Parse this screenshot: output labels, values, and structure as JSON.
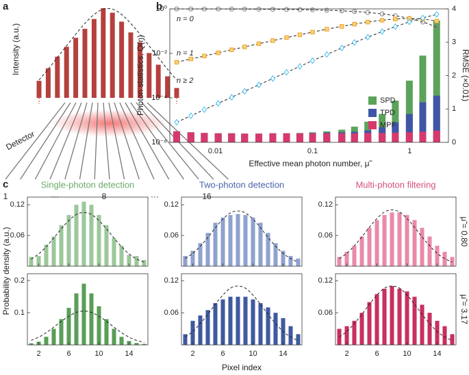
{
  "chart_data": [
    {
      "type": "bar",
      "panel": "a",
      "ylabel": "Intensity (a.u.)",
      "color": "#b5403d",
      "values": [
        0.19,
        0.33,
        0.46,
        0.57,
        0.67,
        0.77,
        0.88,
        1.0,
        0.95,
        0.85,
        0.73,
        0.62,
        0.5,
        0.37,
        0.24,
        0.11
      ],
      "fit": [
        0.2,
        0.32,
        0.45,
        0.58,
        0.71,
        0.83,
        0.93,
        0.99,
        0.99,
        0.93,
        0.83,
        0.71,
        0.58,
        0.45,
        0.32,
        0.2
      ],
      "detector_label": "Detector",
      "pixel_labels": [
        "1",
        "···",
        "8",
        "···",
        "16"
      ]
    },
    {
      "type": "combo",
      "panel": "b",
      "xlabel": "Effective mean photon number, μ̃",
      "ylabel": "Photon statistics, Q(n)",
      "y2label": "RMSE (×0.01)",
      "xscale": "log",
      "yscale": "log",
      "legend": "right",
      "x": [
        0.004,
        0.0056,
        0.0077,
        0.0107,
        0.0147,
        0.02,
        0.028,
        0.039,
        0.054,
        0.074,
        0.1,
        0.14,
        0.2,
        0.27,
        0.37,
        0.52,
        0.71,
        0.99,
        1.36,
        1.89
      ],
      "xlim": [
        0.0034,
        2.5
      ],
      "xticks": [
        0.01,
        0.1,
        1
      ],
      "ylim": [
        1e-06,
        1
      ],
      "yticks": [
        {
          "value": 1e-06,
          "label": "10⁻⁶"
        },
        {
          "value": 0.0001,
          "label": "10⁻⁴"
        },
        {
          "value": 0.01,
          "label": "10⁻²"
        },
        {
          "value": 1,
          "label": "10⁰"
        }
      ],
      "y2lim": [
        0,
        4
      ],
      "y2ticks": [
        0,
        1,
        2,
        3,
        4
      ],
      "series": [
        {
          "name": "n = 0",
          "kind": "line",
          "marker": "circle",
          "color": "#888888",
          "values": [
            0.996,
            0.994,
            0.992,
            0.989,
            0.985,
            0.98,
            0.972,
            0.962,
            0.947,
            0.929,
            0.905,
            0.869,
            0.819,
            0.763,
            0.691,
            0.595,
            0.492,
            0.372,
            0.257,
            0.151
          ]
        },
        {
          "name": "n = 1",
          "kind": "line",
          "marker": "square",
          "color": "#f0a830",
          "values": [
            0.004,
            0.0056,
            0.0076,
            0.0106,
            0.0145,
            0.0196,
            0.0272,
            0.0375,
            0.0511,
            0.0687,
            0.0905,
            0.122,
            0.164,
            0.206,
            0.256,
            0.309,
            0.349,
            0.368,
            0.349,
            0.285
          ]
        },
        {
          "name": "n ≥ 2",
          "kind": "line",
          "marker": "diamond",
          "color": "#4fc3ee",
          "values": [
            8e-06,
            1.56e-05,
            2.95e-05,
            5.65e-05,
            0.000106,
            0.000197,
            0.000384,
            0.000741,
            0.00141,
            0.0026,
            0.00468,
            0.0089,
            0.0175,
            0.031,
            0.0533,
            0.0956,
            0.159,
            0.26,
            0.393,
            0.564
          ]
        },
        {
          "name": "SPD",
          "kind": "bar",
          "axis": "y2",
          "color": "#5ba35a",
          "values": [
            0.33,
            0.3,
            0.28,
            0.27,
            0.27,
            0.26,
            0.26,
            0.27,
            0.27,
            0.28,
            0.3,
            0.33,
            0.38,
            0.47,
            0.62,
            0.85,
            1.25,
            1.85,
            2.6,
            3.65
          ]
        },
        {
          "name": "TPD",
          "kind": "bar",
          "axis": "y2",
          "color": "#3f56a7",
          "values": [
            0.33,
            0.3,
            0.28,
            0.27,
            0.27,
            0.26,
            0.26,
            0.27,
            0.27,
            0.27,
            0.28,
            0.29,
            0.3,
            0.32,
            0.36,
            0.45,
            0.6,
            0.85,
            1.2,
            1.4
          ]
        },
        {
          "name": "MPF",
          "kind": "bar",
          "axis": "y2",
          "color": "#d63a6c",
          "values": [
            0.33,
            0.3,
            0.28,
            0.27,
            0.27,
            0.26,
            0.26,
            0.27,
            0.27,
            0.27,
            0.27,
            0.27,
            0.27,
            0.27,
            0.28,
            0.28,
            0.29,
            0.3,
            0.32,
            0.35
          ]
        }
      ]
    },
    {
      "type": "bar",
      "panel": "c",
      "title": "Single-photon detection",
      "title_color": "#6aaa6a",
      "ylabel": "Probability density (a.u.)",
      "color": "#9cc79a",
      "xtick_labels": false,
      "x": [
        1,
        2,
        3,
        4,
        5,
        6,
        7,
        8,
        9,
        10,
        11,
        12,
        13,
        14,
        15,
        16
      ],
      "xlim": [
        0.5,
        16.5
      ],
      "xticks": [
        2,
        6,
        10,
        14
      ],
      "ylim": [
        0,
        0.135
      ],
      "yticks": [
        0.06,
        0.12
      ],
      "values": [
        0.018,
        0.02,
        0.042,
        0.058,
        0.08,
        0.1,
        0.12,
        0.126,
        0.12,
        0.1,
        0.08,
        0.055,
        0.04,
        0.022,
        0.02,
        0.012
      ],
      "fit": [
        0.014,
        0.024,
        0.038,
        0.055,
        0.073,
        0.089,
        0.101,
        0.105,
        0.101,
        0.089,
        0.073,
        0.055,
        0.038,
        0.024,
        0.014,
        0.008
      ]
    },
    {
      "type": "bar",
      "title": "Two-photon detection",
      "title_color": "#4a64ad",
      "color": "#8fa2cf",
      "xtick_labels": false,
      "x": [
        1,
        2,
        3,
        4,
        5,
        6,
        7,
        8,
        9,
        10,
        11,
        12,
        13,
        14,
        15,
        16
      ],
      "xlim": [
        0.5,
        16.5
      ],
      "xticks": [
        2,
        6,
        10,
        14
      ],
      "ylim": [
        0,
        0.135
      ],
      "yticks": [
        0.06,
        0.12
      ],
      "values": [
        0.02,
        0.03,
        0.045,
        0.065,
        0.085,
        0.095,
        0.1,
        0.102,
        0.1,
        0.095,
        0.085,
        0.065,
        0.045,
        0.03,
        0.02,
        0.015
      ],
      "fit": [
        0.015,
        0.025,
        0.039,
        0.056,
        0.075,
        0.092,
        0.104,
        0.108,
        0.104,
        0.092,
        0.075,
        0.056,
        0.039,
        0.025,
        0.015,
        0.008
      ]
    },
    {
      "type": "bar",
      "title": "Multi-photon filtering",
      "title_color": "#d4507a",
      "annotation": "μ̃ = 0.80",
      "color": "#e98aa8",
      "xtick_labels": false,
      "x": [
        1,
        2,
        3,
        4,
        5,
        6,
        7,
        8,
        9,
        10,
        11,
        12,
        13,
        14,
        15,
        16
      ],
      "xlim": [
        0.5,
        16.5
      ],
      "xticks": [
        2,
        6,
        10,
        14
      ],
      "ylim": [
        0,
        0.135
      ],
      "yticks": [
        0.06,
        0.12
      ],
      "values": [
        0.018,
        0.028,
        0.04,
        0.058,
        0.075,
        0.09,
        0.1,
        0.105,
        0.105,
        0.1,
        0.09,
        0.075,
        0.058,
        0.04,
        0.028,
        0.018
      ],
      "fit": [
        0.015,
        0.025,
        0.04,
        0.057,
        0.076,
        0.093,
        0.106,
        0.11,
        0.106,
        0.093,
        0.076,
        0.057,
        0.04,
        0.025,
        0.015,
        0.008
      ]
    },
    {
      "type": "bar",
      "color": "#5a9e58",
      "xtick_labels": true,
      "x": [
        1,
        2,
        3,
        4,
        5,
        6,
        7,
        8,
        9,
        10,
        11,
        12,
        13,
        14,
        15,
        16
      ],
      "xlim": [
        0.5,
        16.5
      ],
      "xticks": [
        2,
        6,
        10,
        14
      ],
      "ylim": [
        0,
        0.221
      ],
      "yticks": [
        0.1,
        0.2
      ],
      "values": [
        0.005,
        0.01,
        0.025,
        0.05,
        0.08,
        0.115,
        0.16,
        0.19,
        0.16,
        0.12,
        0.08,
        0.05,
        0.025,
        0.012,
        0.006,
        0.003
      ],
      "fit": [
        0.014,
        0.024,
        0.038,
        0.055,
        0.073,
        0.089,
        0.101,
        0.105,
        0.101,
        0.089,
        0.073,
        0.055,
        0.038,
        0.024,
        0.014,
        0.008
      ]
    },
    {
      "type": "bar",
      "xlabel": "Pixel index",
      "color": "#3f5aa0",
      "xtick_labels": true,
      "x": [
        1,
        2,
        3,
        4,
        5,
        6,
        7,
        8,
        9,
        10,
        11,
        12,
        13,
        14,
        15,
        16
      ],
      "xlim": [
        0.5,
        16.5
      ],
      "xticks": [
        2,
        6,
        10,
        14
      ],
      "ylim": [
        0,
        0.133
      ],
      "yticks": [
        0.06,
        0.12
      ],
      "values": [
        0.02,
        0.045,
        0.055,
        0.065,
        0.078,
        0.085,
        0.09,
        0.09,
        0.09,
        0.085,
        0.078,
        0.07,
        0.06,
        0.05,
        0.035,
        0.02
      ],
      "fit": [
        0.015,
        0.025,
        0.04,
        0.057,
        0.076,
        0.093,
        0.106,
        0.11,
        0.106,
        0.093,
        0.076,
        0.057,
        0.04,
        0.025,
        0.015,
        0.008
      ]
    },
    {
      "type": "bar",
      "annotation": "μ̃ = 3.17",
      "color": "#c8305f",
      "xtick_labels": true,
      "x": [
        1,
        2,
        3,
        4,
        5,
        6,
        7,
        8,
        9,
        10,
        11,
        12,
        13,
        14,
        15,
        16
      ],
      "xlim": [
        0.5,
        16.5
      ],
      "xticks": [
        2,
        6,
        10,
        14
      ],
      "ylim": [
        0,
        0.133
      ],
      "yticks": [
        0.06,
        0.12
      ],
      "values": [
        0.03,
        0.035,
        0.045,
        0.06,
        0.08,
        0.095,
        0.105,
        0.11,
        0.105,
        0.1,
        0.09,
        0.075,
        0.06,
        0.045,
        0.035,
        0.02
      ],
      "fit": [
        0.015,
        0.025,
        0.04,
        0.057,
        0.076,
        0.093,
        0.106,
        0.11,
        0.106,
        0.093,
        0.076,
        0.057,
        0.04,
        0.025,
        0.015,
        0.008
      ]
    }
  ]
}
